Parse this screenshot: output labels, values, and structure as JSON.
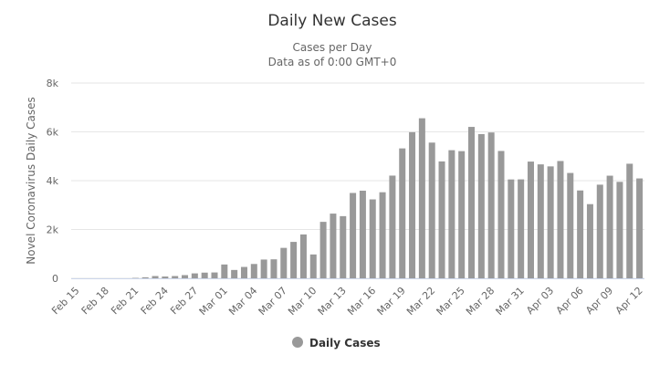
{
  "chart_data": {
    "type": "bar",
    "title": "Daily New Cases",
    "subtitle": [
      "Cases per Day",
      "Data as of 0:00 GMT+0"
    ],
    "y_label": "Novel Coronavirus Daily Cases",
    "categories": [
      "Feb 15",
      null,
      null,
      "Feb 18",
      null,
      null,
      "Feb 21",
      null,
      null,
      "Feb 24",
      null,
      null,
      "Feb 27",
      null,
      null,
      "Mar 01",
      null,
      null,
      "Mar 04",
      null,
      null,
      "Mar 07",
      null,
      null,
      "Mar 10",
      null,
      null,
      "Mar 13",
      null,
      null,
      "Mar 16",
      null,
      null,
      "Mar 19",
      null,
      null,
      "Mar 22",
      null,
      null,
      "Mar 25",
      null,
      null,
      "Mar 28",
      null,
      null,
      "Mar 31",
      null,
      null,
      "Apr 03",
      null,
      null,
      "Apr 06",
      null,
      null,
      "Apr 09",
      null,
      null,
      "Apr 12"
    ],
    "series": [
      {
        "name": "Daily Cases",
        "color": "#999999",
        "values": [
          0,
          0,
          0,
          0,
          0,
          0,
          17,
          42,
          93,
          74,
          93,
          131,
          202,
          233,
          240,
          566,
          342,
          466,
          587,
          769,
          778,
          1247,
          1492,
          1797,
          977,
          2313,
          2651,
          2547,
          3497,
          3590,
          3233,
          3526,
          4207,
          5322,
          5986,
          6557,
          5560,
          4789,
          5249,
          5210,
          6203,
          5909,
          5974,
          5217,
          4050,
          4053,
          4782,
          4668,
          4585,
          4805,
          4316,
          3599,
          3039,
          3836,
          4204,
          3951,
          4694,
          4092
        ]
      }
    ],
    "ylim": [
      0,
      8000
    ],
    "yticks": [
      0,
      {
        "value": 2000,
        "label": "2k"
      },
      {
        "value": 4000,
        "label": "4k"
      },
      {
        "value": 6000,
        "label": "6k"
      },
      {
        "value": 8000,
        "label": "8k"
      }
    ],
    "grid": true,
    "legend": "bottom"
  }
}
